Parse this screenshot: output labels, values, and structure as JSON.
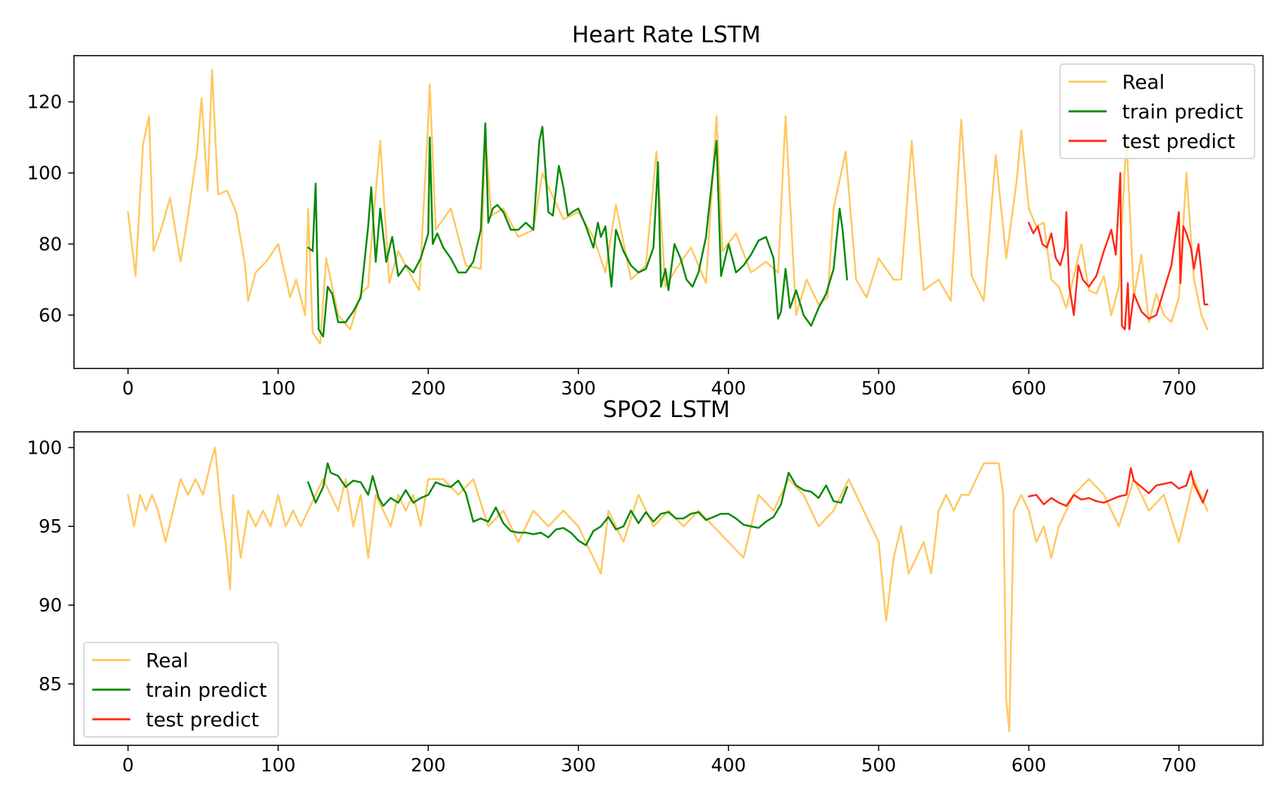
{
  "colors": {
    "real": "#ffc861",
    "train": "#0a8a0a",
    "test": "#ff2a14",
    "background": "#ffffff"
  },
  "chart_data": [
    {
      "type": "line",
      "title": "Heart Rate LSTM",
      "xlabel": "",
      "ylabel": "",
      "xlim": [
        -36,
        756
      ],
      "ylim": [
        45,
        133
      ],
      "xticks": [
        0,
        100,
        200,
        300,
        400,
        500,
        600,
        700
      ],
      "xtick_labels": [
        "0",
        "100",
        "200",
        "300",
        "400",
        "500",
        "600",
        "700"
      ],
      "yticks": [
        60,
        80,
        100,
        120
      ],
      "ytick_labels": [
        "60",
        "80",
        "100",
        "120"
      ],
      "legend": {
        "placement": "upper right"
      },
      "grid": false,
      "series": [
        {
          "name": "Real",
          "color": "#ffc861",
          "x": [
            0,
            5,
            10,
            14,
            17,
            22,
            28,
            35,
            40,
            46,
            49,
            53,
            56,
            60,
            66,
            72,
            78,
            80,
            85,
            92,
            100,
            108,
            112,
            118,
            120,
            123,
            128,
            132,
            140,
            148,
            155,
            160,
            162,
            168,
            174,
            180,
            186,
            194,
            200,
            201,
            205,
            215,
            225,
            235,
            238,
            242,
            250,
            260,
            270,
            276,
            280,
            290,
            300,
            310,
            318,
            325,
            335,
            345,
            352,
            358,
            365,
            375,
            385,
            392,
            396,
            405,
            415,
            425,
            433,
            438,
            445,
            452,
            460,
            466,
            470,
            478,
            485,
            492,
            500,
            510,
            515,
            522,
            530,
            540,
            548,
            555,
            562,
            570,
            578,
            585,
            592,
            595,
            600,
            605,
            610,
            615,
            620,
            625,
            630,
            635,
            640,
            645,
            650,
            655,
            660,
            665,
            670,
            675,
            680,
            685,
            690,
            695,
            700,
            705,
            710,
            715,
            719
          ],
          "y": [
            89,
            71,
            108,
            116,
            78,
            84,
            93,
            75,
            88,
            106,
            121,
            95,
            129,
            94,
            95,
            89,
            74,
            64,
            72,
            75,
            80,
            65,
            70,
            60,
            90,
            55,
            52,
            76,
            60,
            56,
            66,
            68,
            80,
            109,
            69,
            78,
            73,
            67,
            115,
            125,
            84,
            90,
            74,
            73,
            110,
            88,
            90,
            82,
            84,
            100,
            96,
            87,
            89,
            82,
            72,
            91,
            70,
            74,
            106,
            68,
            73,
            79,
            69,
            116,
            78,
            83,
            72,
            75,
            72,
            116,
            60,
            70,
            63,
            65,
            90,
            106,
            70,
            65,
            76,
            70,
            70,
            109,
            67,
            70,
            64,
            115,
            71,
            64,
            105,
            76,
            98,
            112,
            90,
            85,
            86,
            70,
            68,
            62,
            71,
            80,
            67,
            66,
            71,
            60,
            68,
            110,
            65,
            77,
            58,
            66,
            60,
            58,
            65,
            100,
            70,
            60,
            56
          ]
        },
        {
          "name": "train predict",
          "color": "#0a8a0a",
          "x": [
            120,
            123,
            125,
            127,
            130,
            133,
            136,
            140,
            145,
            150,
            155,
            160,
            162,
            165,
            168,
            172,
            176,
            180,
            185,
            190,
            195,
            200,
            201,
            203,
            206,
            210,
            215,
            220,
            225,
            230,
            235,
            238,
            240,
            243,
            246,
            250,
            255,
            260,
            265,
            270,
            274,
            276,
            280,
            283,
            287,
            290,
            293,
            296,
            300,
            305,
            310,
            313,
            315,
            318,
            322,
            325,
            330,
            335,
            340,
            345,
            350,
            353,
            355,
            358,
            360,
            364,
            368,
            372,
            376,
            380,
            385,
            388,
            392,
            395,
            400,
            405,
            410,
            415,
            420,
            425,
            430,
            433,
            435,
            438,
            441,
            445,
            450,
            455,
            460,
            465,
            470,
            474,
            476,
            479
          ],
          "y": [
            79,
            78,
            97,
            56,
            54,
            68,
            66,
            58,
            58,
            61,
            65,
            85,
            96,
            75,
            90,
            75,
            82,
            71,
            74,
            72,
            76,
            83,
            110,
            80,
            83,
            79,
            76,
            72,
            72,
            75,
            84,
            114,
            86,
            90,
            91,
            89,
            84,
            84,
            86,
            84,
            109,
            113,
            89,
            88,
            102,
            96,
            88,
            89,
            90,
            85,
            79,
            86,
            82,
            85,
            68,
            84,
            78,
            74,
            72,
            73,
            79,
            103,
            68,
            73,
            67,
            80,
            76,
            70,
            68,
            72,
            82,
            94,
            109,
            71,
            80,
            72,
            74,
            77,
            81,
            82,
            76,
            59,
            61,
            73,
            62,
            67,
            60,
            57,
            62,
            66,
            73,
            90,
            84,
            70
          ]
        },
        {
          "name": "test predict",
          "color": "#ff2a14",
          "x": [
            600,
            603,
            606,
            609,
            612,
            615,
            618,
            621,
            624,
            625,
            627,
            630,
            633,
            636,
            640,
            645,
            650,
            655,
            658,
            661,
            662,
            664,
            666,
            667,
            670,
            675,
            680,
            685,
            690,
            695,
            700,
            701,
            703,
            705,
            708,
            710,
            713,
            715,
            717,
            719
          ],
          "y": [
            86,
            83,
            85,
            80,
            79,
            83,
            76,
            74,
            79,
            89,
            68,
            60,
            74,
            70,
            68,
            71,
            78,
            84,
            77,
            100,
            57,
            56,
            69,
            56,
            66,
            61,
            59,
            60,
            67,
            74,
            89,
            69,
            85,
            83,
            79,
            73,
            80,
            72,
            63,
            63
          ]
        }
      ]
    },
    {
      "type": "line",
      "title": "SPO2 LSTM",
      "xlabel": "",
      "ylabel": "",
      "xlim": [
        -36,
        756
      ],
      "ylim": [
        81.1,
        101
      ],
      "xticks": [
        0,
        100,
        200,
        300,
        400,
        500,
        600,
        700
      ],
      "xtick_labels": [
        "0",
        "100",
        "200",
        "300",
        "400",
        "500",
        "600",
        "700"
      ],
      "yticks": [
        85,
        90,
        95,
        100
      ],
      "ytick_labels": [
        "85",
        "90",
        "95",
        "100"
      ],
      "legend": {
        "placement": "lower left"
      },
      "grid": false,
      "series": [
        {
          "name": "Real",
          "color": "#ffc861",
          "x": [
            0,
            4,
            8,
            12,
            16,
            20,
            25,
            30,
            35,
            40,
            45,
            50,
            55,
            58,
            62,
            65,
            68,
            70,
            75,
            80,
            85,
            90,
            95,
            100,
            105,
            110,
            115,
            120,
            125,
            130,
            135,
            140,
            145,
            150,
            155,
            160,
            165,
            170,
            175,
            180,
            185,
            190,
            195,
            200,
            210,
            220,
            230,
            240,
            250,
            260,
            270,
            280,
            290,
            300,
            310,
            315,
            320,
            330,
            340,
            350,
            360,
            370,
            380,
            390,
            400,
            410,
            420,
            430,
            440,
            450,
            460,
            470,
            480,
            490,
            500,
            505,
            510,
            515,
            520,
            525,
            530,
            535,
            540,
            545,
            550,
            555,
            560,
            565,
            570,
            575,
            580,
            583,
            585,
            587,
            590,
            595,
            600,
            605,
            610,
            615,
            620,
            625,
            630,
            640,
            650,
            660,
            670,
            680,
            690,
            700,
            710,
            719
          ],
          "y": [
            97,
            95,
            97,
            96,
            97,
            96,
            94,
            96,
            98,
            97,
            98,
            97,
            99,
            100,
            96,
            94,
            91,
            97,
            93,
            96,
            95,
            96,
            95,
            97,
            95,
            96,
            95,
            96,
            97,
            98,
            97,
            96,
            98,
            95,
            97,
            93,
            97,
            96,
            95,
            97,
            96,
            97,
            95,
            98,
            98,
            97,
            98,
            95,
            96,
            94,
            96,
            95,
            96,
            95,
            93,
            92,
            96,
            94,
            97,
            95,
            96,
            95,
            96,
            95,
            94,
            93,
            97,
            96,
            98,
            97,
            95,
            96,
            98,
            96,
            94,
            89,
            93,
            95,
            92,
            93,
            94,
            92,
            96,
            97,
            96,
            97,
            97,
            98,
            99,
            99,
            99,
            97,
            84,
            82,
            96,
            97,
            96,
            94,
            95,
            93,
            95,
            96,
            97,
            98,
            97,
            95,
            98,
            96,
            97,
            94,
            98,
            96
          ]
        },
        {
          "name": "train predict",
          "color": "#0a8a0a",
          "x": [
            120,
            125,
            130,
            133,
            135,
            140,
            145,
            150,
            155,
            160,
            163,
            167,
            170,
            175,
            180,
            185,
            190,
            195,
            200,
            205,
            210,
            215,
            220,
            225,
            230,
            235,
            240,
            245,
            250,
            255,
            260,
            265,
            270,
            275,
            280,
            285,
            290,
            295,
            300,
            305,
            310,
            315,
            320,
            325,
            330,
            335,
            340,
            345,
            350,
            355,
            360,
            365,
            370,
            375,
            380,
            385,
            390,
            395,
            400,
            405,
            410,
            415,
            420,
            425,
            430,
            435,
            440,
            445,
            450,
            455,
            460,
            465,
            470,
            475,
            479
          ],
          "y": [
            97.8,
            96.5,
            97.5,
            99,
            98.4,
            98.2,
            97.5,
            97.9,
            97.8,
            97,
            98.2,
            96.8,
            96.3,
            96.8,
            96.5,
            97.3,
            96.5,
            96.8,
            97,
            97.8,
            97.6,
            97.5,
            97.9,
            97.1,
            95.3,
            95.5,
            95.3,
            96.2,
            95.2,
            94.7,
            94.6,
            94.6,
            94.5,
            94.6,
            94.3,
            94.8,
            94.9,
            94.6,
            94.1,
            93.8,
            94.7,
            95.0,
            95.6,
            94.8,
            95.0,
            96.0,
            95.2,
            95.9,
            95.3,
            95.8,
            95.9,
            95.5,
            95.5,
            95.8,
            95.9,
            95.4,
            95.6,
            95.8,
            95.8,
            95.5,
            95.1,
            95.0,
            94.9,
            95.3,
            95.6,
            96.4,
            98.4,
            97.6,
            97.3,
            97.2,
            96.8,
            97.6,
            96.6,
            96.5,
            97.5
          ]
        },
        {
          "name": "test predict",
          "color": "#ff2a14",
          "x": [
            600,
            605,
            610,
            615,
            620,
            625,
            630,
            635,
            640,
            645,
            650,
            655,
            660,
            665,
            668,
            670,
            675,
            680,
            685,
            690,
            695,
            700,
            705,
            708,
            710,
            713,
            716,
            719
          ],
          "y": [
            96.9,
            97.0,
            96.4,
            96.8,
            96.5,
            96.3,
            97.0,
            96.7,
            96.8,
            96.6,
            96.5,
            96.7,
            96.9,
            97.0,
            98.7,
            97.9,
            97.5,
            97.1,
            97.6,
            97.7,
            97.8,
            97.4,
            97.6,
            98.5,
            97.7,
            97.1,
            96.5,
            97.3
          ]
        }
      ]
    }
  ]
}
